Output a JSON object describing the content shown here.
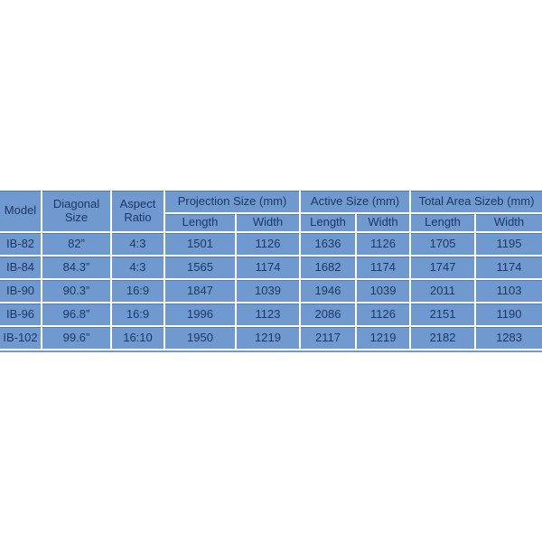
{
  "page": {
    "background_color": "#ffffff"
  },
  "style": {
    "cell_fill_color": "#6f99cf",
    "cell_top_edge_color": "#4e7bb4",
    "text_color": "#1f3864",
    "grid_color": "#ffffff"
  },
  "chart_data": {
    "type": "table",
    "row_header_columns": [
      {
        "label": "Model"
      },
      {
        "label": "Diagonal Size"
      },
      {
        "label": "Aspect Ratio"
      }
    ],
    "column_groups": [
      {
        "label": "Projection Size (mm)",
        "columns": [
          "Length",
          "Width"
        ]
      },
      {
        "label": "Active Size (mm)",
        "columns": [
          "Length",
          "Width"
        ]
      },
      {
        "label": "Total Area Sizeb (mm)",
        "columns": [
          "Length",
          "Width"
        ]
      }
    ],
    "rows": [
      {
        "model": "IB-82",
        "diagonal_size": "82”",
        "aspect_ratio": "4:3",
        "projection_length": 1501,
        "projection_width": 1126,
        "active_length": 1636,
        "active_width": 1126,
        "total_length": 1705,
        "total_width": 1195
      },
      {
        "model": "IB-84",
        "diagonal_size": "84.3”",
        "aspect_ratio": "4:3",
        "projection_length": 1565,
        "projection_width": 1174,
        "active_length": 1682,
        "active_width": 1174,
        "total_length": 1747,
        "total_width": 1174
      },
      {
        "model": "IB-90",
        "diagonal_size": "90.3”",
        "aspect_ratio": "16:9",
        "projection_length": 1847,
        "projection_width": 1039,
        "active_length": 1946,
        "active_width": 1039,
        "total_length": 2011,
        "total_width": 1103
      },
      {
        "model": "IB-96",
        "diagonal_size": "96.8”",
        "aspect_ratio": "16:9",
        "projection_length": 1996,
        "projection_width": 1123,
        "active_length": 2086,
        "active_width": 1126,
        "total_length": 2151,
        "total_width": 1190
      },
      {
        "model": "IB-102",
        "diagonal_size": "99.6”",
        "aspect_ratio": "16:10",
        "projection_length": 1950,
        "projection_width": 1219,
        "active_length": 2117,
        "active_width": 1219,
        "total_length": 2182,
        "total_width": 1283
      }
    ]
  }
}
